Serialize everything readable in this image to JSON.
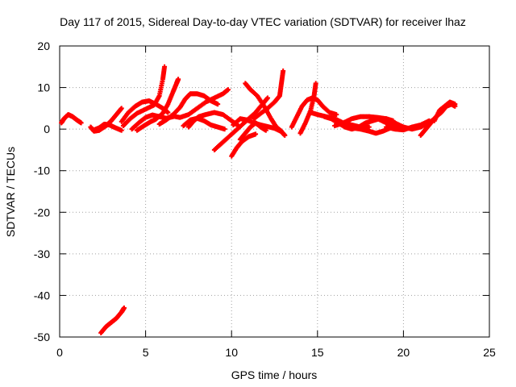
{
  "chart_data": {
    "type": "scatter",
    "title": "Day 117 of 2015, Sidereal Day-to-day VTEC variation (SDTVAR) for receiver lhaz",
    "xlabel": "GPS time / hours",
    "ylabel": "SDTVAR / TECUs",
    "xlim": [
      0,
      25
    ],
    "ylim": [
      -50,
      20
    ],
    "xticks": [
      0,
      5,
      10,
      15,
      20,
      25
    ],
    "yticks": [
      -50,
      -40,
      -30,
      -20,
      -10,
      0,
      10,
      20
    ],
    "grid": true,
    "series_color": "#ff0000",
    "marker": "plus",
    "tracks": [
      [
        [
          0.1,
          1.5
        ],
        [
          0.25,
          2.5
        ],
        [
          0.5,
          3.5
        ],
        [
          0.75,
          3.0
        ],
        [
          1.0,
          2.2
        ],
        [
          1.25,
          1.5
        ]
      ],
      [
        [
          1.8,
          0.5
        ],
        [
          2.0,
          -0.5
        ],
        [
          2.3,
          -0.3
        ],
        [
          2.7,
          0.8
        ],
        [
          3.0,
          2.0
        ],
        [
          3.3,
          3.5
        ],
        [
          3.6,
          5.0
        ]
      ],
      [
        [
          2.0,
          -0.2
        ],
        [
          2.3,
          0.3
        ],
        [
          2.6,
          1.2
        ],
        [
          2.9,
          1.0
        ],
        [
          3.2,
          0.4
        ],
        [
          3.6,
          -0.3
        ]
      ],
      [
        [
          3.6,
          1.8
        ],
        [
          4.0,
          4.0
        ],
        [
          4.4,
          5.5
        ],
        [
          4.8,
          6.5
        ],
        [
          5.2,
          6.8
        ],
        [
          5.6,
          6.0
        ],
        [
          6.0,
          5.0
        ],
        [
          6.3,
          4.0
        ]
      ],
      [
        [
          3.7,
          0.8
        ],
        [
          4.1,
          2.5
        ],
        [
          4.5,
          3.8
        ],
        [
          5.0,
          4.8
        ],
        [
          5.5,
          5.8
        ],
        [
          5.8,
          8.0
        ],
        [
          6.0,
          12.0
        ],
        [
          6.1,
          15.0
        ]
      ],
      [
        [
          4.2,
          0.0
        ],
        [
          4.6,
          1.5
        ],
        [
          5.0,
          2.8
        ],
        [
          5.4,
          3.4
        ],
        [
          5.8,
          3.0
        ],
        [
          6.2,
          2.6
        ],
        [
          6.6,
          3.0
        ]
      ],
      [
        [
          4.5,
          -0.3
        ],
        [
          4.9,
          0.8
        ],
        [
          5.3,
          1.8
        ],
        [
          5.6,
          2.4
        ],
        [
          6.0,
          3.8
        ],
        [
          6.3,
          6.0
        ],
        [
          6.6,
          9.0
        ],
        [
          6.8,
          11.0
        ],
        [
          6.9,
          12.0
        ]
      ],
      [
        [
          5.8,
          1.2
        ],
        [
          6.2,
          2.2
        ],
        [
          6.6,
          3.5
        ],
        [
          7.0,
          5.2
        ],
        [
          7.3,
          7.2
        ],
        [
          7.6,
          8.5
        ],
        [
          8.0,
          8.5
        ],
        [
          8.4,
          8.0
        ],
        [
          8.8,
          6.8
        ],
        [
          9.2,
          6.0
        ]
      ],
      [
        [
          6.5,
          3.2
        ],
        [
          7.0,
          2.8
        ],
        [
          7.5,
          3.5
        ],
        [
          8.0,
          5.0
        ],
        [
          8.5,
          6.5
        ],
        [
          9.0,
          7.5
        ],
        [
          9.5,
          8.5
        ],
        [
          9.8,
          9.5
        ]
      ],
      [
        [
          7.2,
          0.8
        ],
        [
          7.6,
          2.2
        ],
        [
          8.0,
          2.6
        ],
        [
          8.4,
          2.0
        ],
        [
          8.8,
          1.0
        ],
        [
          9.2,
          0.5
        ],
        [
          9.6,
          0.0
        ]
      ],
      [
        [
          7.5,
          0.5
        ],
        [
          7.8,
          2.0
        ],
        [
          8.1,
          3.0
        ],
        [
          8.5,
          3.5
        ],
        [
          9.0,
          4.0
        ],
        [
          9.5,
          3.5
        ],
        [
          10.0,
          2.0
        ],
        [
          10.4,
          0.8
        ]
      ],
      [
        [
          9.0,
          -5.0
        ],
        [
          9.4,
          -3.5
        ],
        [
          9.8,
          -2.0
        ],
        [
          10.2,
          -0.5
        ],
        [
          10.6,
          1.0
        ],
        [
          11.0,
          2.5
        ],
        [
          11.4,
          4.0
        ],
        [
          11.8,
          6.0
        ],
        [
          12.1,
          7.5
        ]
      ],
      [
        [
          10.0,
          -6.5
        ],
        [
          10.3,
          -4.5
        ],
        [
          10.6,
          -3.0
        ],
        [
          11.0,
          -1.8
        ],
        [
          11.4,
          -1.2
        ]
      ],
      [
        [
          10.1,
          1.0
        ],
        [
          10.5,
          2.5
        ],
        [
          10.9,
          2.2
        ],
        [
          11.3,
          1.5
        ],
        [
          11.7,
          1.0
        ],
        [
          12.1,
          0.6
        ],
        [
          12.5,
          0.2
        ],
        [
          12.9,
          -0.6
        ],
        [
          13.1,
          -1.5
        ]
      ],
      [
        [
          10.8,
          11.0
        ],
        [
          11.1,
          9.5
        ],
        [
          11.5,
          8.0
        ],
        [
          11.9,
          5.5
        ],
        [
          12.3,
          2.5
        ],
        [
          12.6,
          0.5
        ],
        [
          12.9,
          -0.5
        ]
      ],
      [
        [
          11.3,
          2.5
        ],
        [
          11.7,
          3.8
        ],
        [
          12.1,
          5.0
        ],
        [
          12.5,
          6.5
        ],
        [
          12.8,
          8.0
        ],
        [
          12.9,
          11.0
        ],
        [
          13.0,
          14.0
        ]
      ],
      [
        [
          10.5,
          -2.5
        ],
        [
          10.8,
          -1.0
        ],
        [
          11.1,
          0.5
        ],
        [
          11.4,
          1.5
        ],
        [
          11.7,
          0.5
        ],
        [
          12.0,
          -0.3
        ]
      ],
      [
        [
          14.0,
          -1.0
        ],
        [
          14.3,
          1.5
        ],
        [
          14.6,
          4.5
        ],
        [
          14.8,
          8.0
        ],
        [
          14.9,
          11.0
        ]
      ],
      [
        [
          13.5,
          0.5
        ],
        [
          13.8,
          3.0
        ],
        [
          14.1,
          5.5
        ],
        [
          14.4,
          7.0
        ],
        [
          14.7,
          7.5
        ],
        [
          15.0,
          7.0
        ],
        [
          15.3,
          5.5
        ],
        [
          15.7,
          4.0
        ],
        [
          16.1,
          3.5
        ]
      ],
      [
        [
          14.6,
          4.0
        ],
        [
          15.0,
          3.5
        ],
        [
          15.5,
          3.0
        ],
        [
          16.0,
          2.5
        ],
        [
          16.5,
          1.5
        ],
        [
          17.0,
          1.0
        ],
        [
          17.5,
          0.5
        ],
        [
          18.0,
          0.5
        ]
      ],
      [
        [
          15.4,
          3.0
        ],
        [
          15.8,
          2.5
        ],
        [
          16.2,
          1.5
        ],
        [
          16.6,
          0.5
        ],
        [
          17.0,
          0.0
        ],
        [
          17.4,
          0.5
        ],
        [
          17.8,
          1.5
        ],
        [
          18.2,
          2.0
        ],
        [
          18.6,
          2.5
        ],
        [
          19.0,
          2.5
        ],
        [
          19.4,
          2.0
        ]
      ],
      [
        [
          16.0,
          0.8
        ],
        [
          16.5,
          1.5
        ],
        [
          17.0,
          2.5
        ],
        [
          17.5,
          3.0
        ],
        [
          18.0,
          3.0
        ],
        [
          18.5,
          2.5
        ],
        [
          19.0,
          1.5
        ],
        [
          19.5,
          0.8
        ],
        [
          20.0,
          0.5
        ]
      ],
      [
        [
          17.0,
          0.3
        ],
        [
          17.5,
          0.0
        ],
        [
          18.0,
          -0.5
        ],
        [
          18.4,
          -1.0
        ],
        [
          18.8,
          -0.5
        ],
        [
          19.2,
          0.2
        ],
        [
          19.6,
          0.8
        ],
        [
          20.0,
          0.5
        ]
      ],
      [
        [
          18.0,
          3.0
        ],
        [
          18.5,
          2.8
        ],
        [
          19.0,
          2.5
        ],
        [
          19.5,
          1.5
        ],
        [
          20.0,
          0.5
        ],
        [
          20.5,
          0.0
        ],
        [
          21.0,
          0.5
        ],
        [
          21.5,
          1.5
        ],
        [
          21.8,
          2.5
        ]
      ],
      [
        [
          19.0,
          0.5
        ],
        [
          19.5,
          0.0
        ],
        [
          20.0,
          -0.2
        ],
        [
          20.5,
          0.5
        ],
        [
          21.0,
          1.0
        ],
        [
          21.5,
          2.0
        ]
      ],
      [
        [
          21.0,
          -1.5
        ],
        [
          21.3,
          0.0
        ],
        [
          21.6,
          1.5
        ],
        [
          21.9,
          3.0
        ],
        [
          22.2,
          4.0
        ],
        [
          22.5,
          5.5
        ],
        [
          22.8,
          6.0
        ],
        [
          23.0,
          5.5
        ]
      ],
      [
        [
          21.8,
          2.0
        ],
        [
          22.1,
          4.5
        ],
        [
          22.4,
          5.5
        ],
        [
          22.7,
          6.5
        ],
        [
          23.0,
          6.0
        ]
      ],
      [
        [
          2.4,
          -49.0
        ],
        [
          2.7,
          -47.5
        ],
        [
          3.0,
          -46.5
        ],
        [
          3.3,
          -45.5
        ],
        [
          3.6,
          -44.0
        ],
        [
          3.75,
          -43.0
        ]
      ]
    ]
  }
}
